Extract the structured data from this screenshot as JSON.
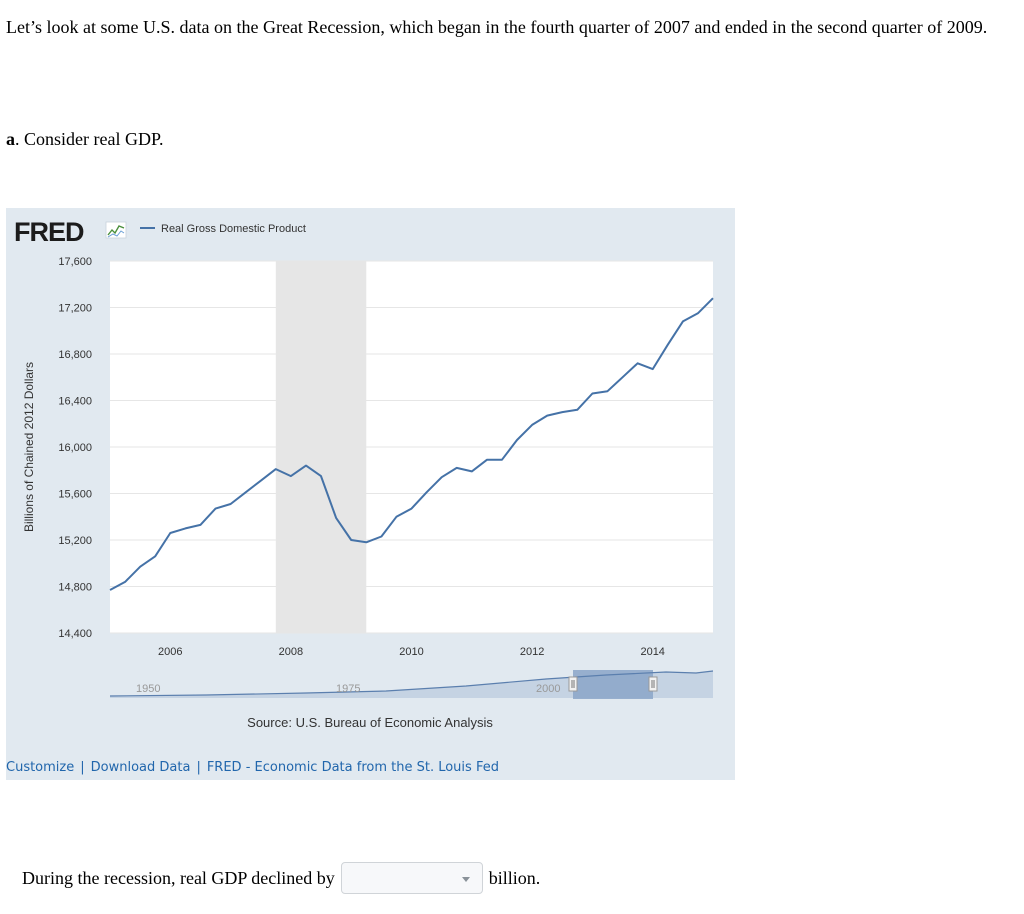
{
  "intro_text": "Let’s look at some U.S. data on the Great Recession, which began in the fourth quarter of 2007 and ended in the second quarter of 2009.",
  "part": {
    "letter": "a",
    "text": ". Consider real GDP."
  },
  "fred": {
    "logo_text": "FRED",
    "source": "Source: U.S. Bureau of Economic Analysis",
    "links": [
      "Customize",
      "Download Data",
      "FRED - Economic Data from the St. Louis Fed"
    ],
    "link_separator": "|",
    "navigator_labels": [
      "1950",
      "1975",
      "2000"
    ]
  },
  "chart_data": {
    "type": "line",
    "title": "",
    "xlabel": "",
    "ylabel": "Billions of Chained 2012 Dollars",
    "legend": "top-left",
    "grid": true,
    "series": [
      {
        "name": "Real Gross Domestic Product",
        "color": "#4572a7",
        "x": [
          2005.0,
          2005.25,
          2005.5,
          2005.75,
          2006.0,
          2006.25,
          2006.5,
          2006.75,
          2007.0,
          2007.25,
          2007.5,
          2007.75,
          2008.0,
          2008.25,
          2008.5,
          2008.75,
          2009.0,
          2009.25,
          2009.5,
          2009.75,
          2010.0,
          2010.25,
          2010.5,
          2010.75,
          2011.0,
          2011.25,
          2011.5,
          2011.75,
          2012.0,
          2012.25,
          2012.5,
          2012.75,
          2013.0,
          2013.25,
          2013.5,
          2013.75,
          2014.0,
          2014.25,
          2014.5,
          2014.75,
          2015.0
        ],
        "values": [
          14770,
          14840,
          14970,
          15060,
          15260,
          15300,
          15330,
          15470,
          15510,
          15610,
          15710,
          15810,
          15750,
          15840,
          15750,
          15390,
          15200,
          15180,
          15230,
          15400,
          15470,
          15610,
          15740,
          15820,
          15790,
          15890,
          15890,
          16060,
          16190,
          16270,
          16300,
          16320,
          16460,
          16480,
          16600,
          16720,
          16670,
          16880,
          17080,
          17150,
          17280
        ]
      }
    ],
    "recession": {
      "start": 2007.75,
      "end": 2009.25
    },
    "x_ticks": [
      "2006",
      "2008",
      "2010",
      "2012",
      "2014"
    ],
    "x_tick_values": [
      2006,
      2008,
      2010,
      2012,
      2014
    ],
    "xlim": [
      2005.0,
      2015.0
    ],
    "y_ticks": [
      "14,400",
      "14,800",
      "15,200",
      "15,600",
      "16,000",
      "16,400",
      "16,800",
      "17,200",
      "17,600"
    ],
    "y_tick_values": [
      14400,
      14800,
      15200,
      15600,
      16000,
      16400,
      16800,
      17200,
      17600
    ],
    "ylim": [
      14400,
      17600
    ]
  },
  "question": {
    "prefix": "During the recession, real GDP declined by",
    "dropdown_value": "",
    "suffix": "billion."
  }
}
